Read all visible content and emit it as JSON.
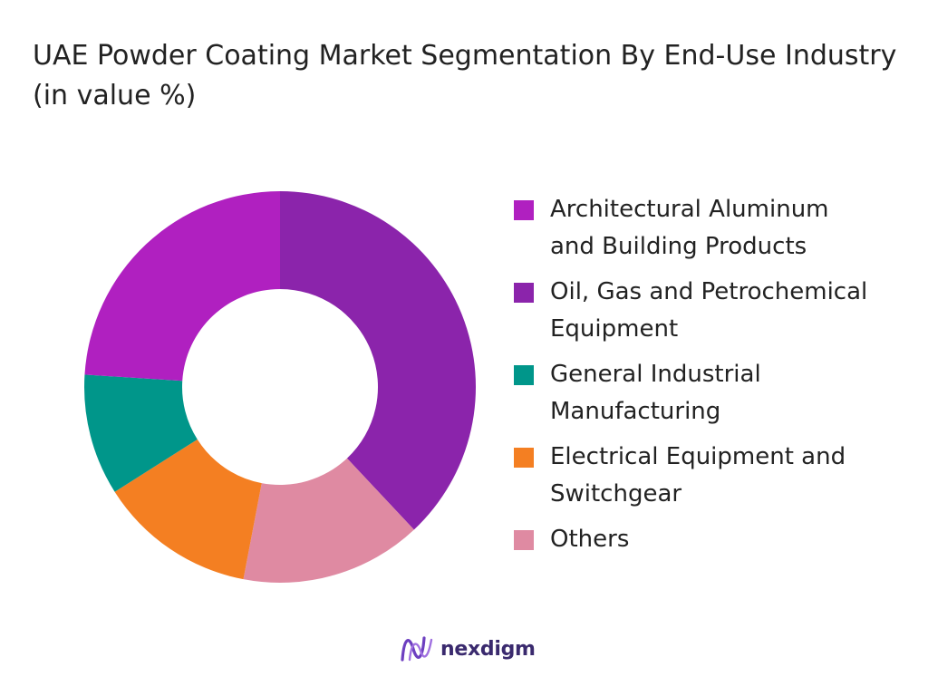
{
  "chart_data": {
    "type": "pie",
    "title": "UAE Powder Coating Market Segmentation By End-Use Industry (in value %)",
    "categories": [
      "Architectural Aluminum and Building Products",
      "Oil, Gas and Petrochemical Equipment",
      "General Industrial Manufacturing",
      "Electrical Equipment and Switchgear",
      "Others"
    ],
    "legend_labels": [
      " Architectural Aluminum\n and Building Products",
      "Oil, Gas and Petrochemical\nEquipment",
      "General Industrial\nManufacturing",
      "Electrical Equipment and\nSwitchgear",
      " Others"
    ],
    "values": [
      24,
      38,
      10,
      13,
      15
    ],
    "colors": [
      "#b020c0",
      "#8b24ab",
      "#00968a",
      "#f47f22",
      "#df8aa2"
    ],
    "drawing_order": [
      1,
      4,
      3,
      2,
      0
    ],
    "legend_position": "right",
    "hole": true
  },
  "brand": {
    "name": "nexdigm",
    "logo_color": "#6d3fc0"
  }
}
